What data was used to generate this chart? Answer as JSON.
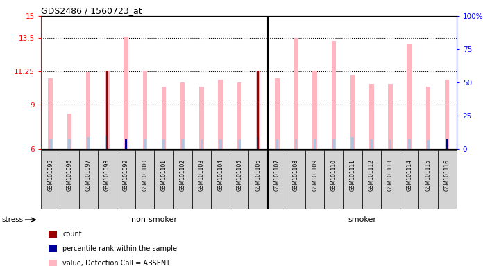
{
  "title": "GDS2486 / 1560723_at",
  "samples": [
    "GSM101095",
    "GSM101096",
    "GSM101097",
    "GSM101098",
    "GSM101099",
    "GSM101100",
    "GSM101101",
    "GSM101102",
    "GSM101103",
    "GSM101104",
    "GSM101105",
    "GSM101106",
    "GSM101107",
    "GSM101108",
    "GSM101109",
    "GSM101110",
    "GSM101111",
    "GSM101112",
    "GSM101113",
    "GSM101114",
    "GSM101115",
    "GSM101116"
  ],
  "value_absent": [
    10.8,
    8.4,
    11.2,
    11.3,
    13.6,
    11.3,
    10.2,
    10.5,
    10.2,
    10.7,
    10.5,
    11.3,
    10.8,
    13.5,
    11.3,
    13.3,
    11.0,
    10.4,
    10.4,
    13.1,
    10.2,
    10.7
  ],
  "rank_absent": [
    6.7,
    6.7,
    6.8,
    6.9,
    6.5,
    6.7,
    6.65,
    6.7,
    6.65,
    6.65,
    6.65,
    6.8,
    6.65,
    6.7,
    6.7,
    6.7,
    6.8,
    6.65,
    6.65,
    6.7,
    6.6,
    6.7
  ],
  "count_bars": [
    false,
    false,
    false,
    true,
    false,
    false,
    false,
    false,
    false,
    false,
    false,
    true,
    false,
    false,
    false,
    false,
    false,
    false,
    false,
    false,
    false,
    false
  ],
  "count_values": [
    0,
    0,
    0,
    11.3,
    0,
    0,
    0,
    0,
    0,
    0,
    0,
    11.3,
    0,
    0,
    0,
    0,
    0,
    0,
    0,
    0,
    0,
    0
  ],
  "percentile_bars": [
    false,
    false,
    false,
    false,
    true,
    false,
    false,
    false,
    false,
    false,
    false,
    false,
    false,
    false,
    false,
    false,
    false,
    false,
    false,
    false,
    false,
    true
  ],
  "percentile_values": [
    0,
    0,
    0,
    0,
    6.65,
    0,
    0,
    0,
    0,
    0,
    0,
    0,
    0,
    0,
    0,
    0,
    0,
    0,
    0,
    0,
    0,
    6.7
  ],
  "ylim_left": [
    6,
    15
  ],
  "ylim_right": [
    0,
    100
  ],
  "yticks_left": [
    6,
    9,
    11.25,
    13.5,
    15
  ],
  "ytick_labels_left": [
    "6",
    "9",
    "11.25",
    "13.5",
    "15"
  ],
  "yticks_right": [
    0,
    25,
    50,
    75,
    100
  ],
  "ytick_labels_right": [
    "0",
    "25",
    "50",
    "75",
    "100%"
  ],
  "nonsmoker_count": 12,
  "smoker_count": 10,
  "group1_label": "non-smoker",
  "group2_label": "smoker",
  "stress_label": "stress",
  "color_value_absent": "#FFB6C1",
  "color_rank_absent": "#B0C4DE",
  "color_count": "#990000",
  "color_percentile": "#000099",
  "color_bg_plot": "#ffffff",
  "color_xticklabel_bg": "#d3d3d3",
  "color_group_nonsmoker": "#b0f0b0",
  "color_group_smoker": "#44dd44",
  "bar_width": 0.4
}
